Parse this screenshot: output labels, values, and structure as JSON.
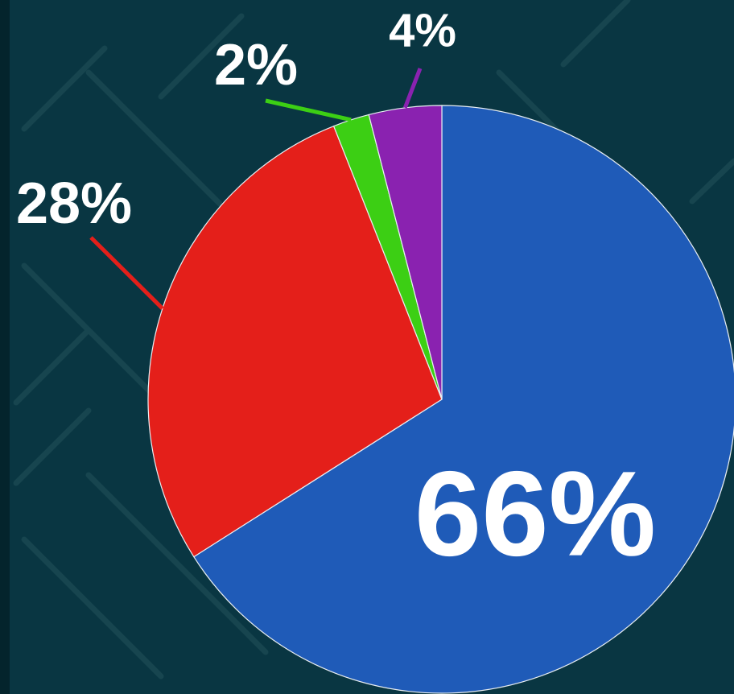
{
  "chart_data": {
    "type": "pie",
    "values": [
      66,
      28,
      2,
      4
    ],
    "value_labels": [
      "66%",
      "28%",
      "2%",
      "4%"
    ],
    "colors": [
      "#1f5bb8",
      "#e41f1a",
      "#3ccf14",
      "#8a22b0"
    ]
  }
}
